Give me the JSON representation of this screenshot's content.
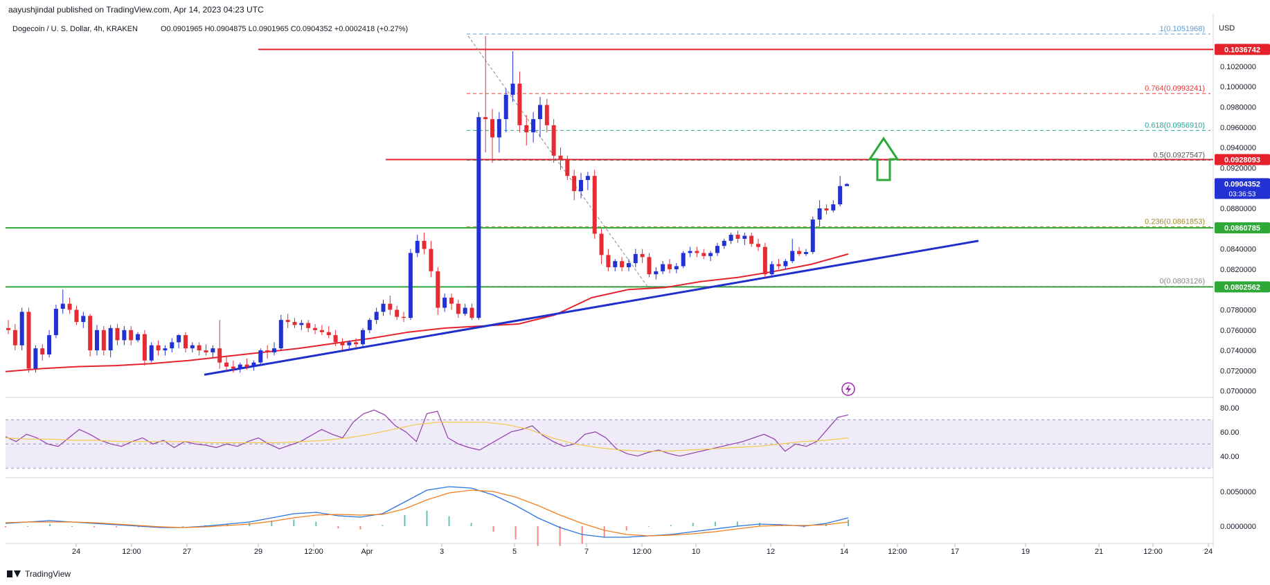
{
  "header": {
    "published": "aayushjindal published on TradingView.com, Apr 14, 2023 04:23 UTC",
    "symbol_line": "Dogecoin / U. S. Dollar, 4h, KRAKEN",
    "ohlc": "O0.0901965 H0.0904875 L0.0901965 C0.0904352 +0.0002418 (+0.27%)"
  },
  "currency_label": "USD",
  "brand": "TradingView",
  "colors": {
    "up": "#2131d4",
    "down": "#e52b34",
    "ma": "#e5222c",
    "trendline": "#1f2fcc",
    "resistance": "#e5222c",
    "support": "#2ea836",
    "fib": "#e53935",
    "rsi": "#8e3fa8",
    "rsi_ma": "#f2c84b",
    "macd": "#2a73e0",
    "signal": "#f27f1b",
    "hist": "#26a69a",
    "hist_neg": "#ef5350",
    "arrow": "#2ea836"
  },
  "chart_data": {
    "type": "candlestick",
    "pair": "DOGE/USD",
    "timeframe": "4h",
    "exchange": "KRAKEN",
    "price_axis": {
      "ticks": [
        "0.1020000",
        "0.1000000",
        "0.0980000",
        "0.0960000",
        "0.0940000",
        "0.0920000",
        "0.0880000",
        "0.0840000",
        "0.0820000",
        "0.0780000",
        "0.0760000",
        "0.0740000",
        "0.0720000",
        "0.0700000"
      ],
      "range": [
        0.0695,
        0.1065
      ]
    },
    "time_axis": {
      "labels": [
        "24",
        "12:00",
        "27",
        "29",
        "12:00",
        "Apr",
        "3",
        "5",
        "7",
        "12:00",
        "10",
        "12",
        "14",
        "12:00",
        "17",
        "19",
        "21",
        "12:00",
        "24"
      ]
    },
    "price_tags": [
      {
        "label": "0.1036742",
        "value": 0.1036742,
        "color": "#e5222c"
      },
      {
        "label": "0.0928093",
        "value": 0.0928093,
        "color": "#e5222c"
      },
      {
        "label": "0.0904352",
        "value": 0.0904352,
        "color": "#2131d4",
        "countdown": "03:36:53"
      },
      {
        "label": "0.0860785",
        "value": 0.0860785,
        "color": "#2ea836"
      },
      {
        "label": "0.0802562",
        "value": 0.0802562,
        "color": "#2ea836"
      }
    ],
    "horizontal_levels": [
      {
        "value": 0.1036742,
        "kind": "resistance"
      },
      {
        "value": 0.0928093,
        "kind": "resistance"
      },
      {
        "value": 0.0860785,
        "kind": "support"
      },
      {
        "value": 0.0802562,
        "kind": "support"
      }
    ],
    "fib_levels": [
      {
        "label": "1(0.1051968)",
        "value": 0.1051968
      },
      {
        "label": "0.764(0.0993241)",
        "value": 0.0993241
      },
      {
        "label": "0.618(0.0956910)",
        "value": 0.095691
      },
      {
        "label": "0.5(0.0927547)",
        "value": 0.0927547
      },
      {
        "label": "0.236(0.0861853)",
        "value": 0.0861853
      },
      {
        "label": "0(0.0803126)",
        "value": 0.0803126
      }
    ],
    "candles": [
      {
        "o": 0.0762,
        "h": 0.077,
        "l": 0.0756,
        "c": 0.076
      },
      {
        "o": 0.076,
        "h": 0.0766,
        "l": 0.074,
        "c": 0.0745
      },
      {
        "o": 0.0745,
        "h": 0.0782,
        "l": 0.074,
        "c": 0.0778
      },
      {
        "o": 0.0778,
        "h": 0.0782,
        "l": 0.0718,
        "c": 0.0722
      },
      {
        "o": 0.0722,
        "h": 0.0745,
        "l": 0.0718,
        "c": 0.0742
      },
      {
        "o": 0.0742,
        "h": 0.0746,
        "l": 0.073,
        "c": 0.0736
      },
      {
        "o": 0.0736,
        "h": 0.076,
        "l": 0.0733,
        "c": 0.0755
      },
      {
        "o": 0.0755,
        "h": 0.0785,
        "l": 0.0752,
        "c": 0.0781
      },
      {
        "o": 0.0781,
        "h": 0.08,
        "l": 0.0776,
        "c": 0.0786
      },
      {
        "o": 0.0786,
        "h": 0.0792,
        "l": 0.0776,
        "c": 0.078
      },
      {
        "o": 0.078,
        "h": 0.0784,
        "l": 0.0765,
        "c": 0.0768
      },
      {
        "o": 0.0768,
        "h": 0.0778,
        "l": 0.0762,
        "c": 0.0774
      },
      {
        "o": 0.0774,
        "h": 0.0776,
        "l": 0.0734,
        "c": 0.074
      },
      {
        "o": 0.074,
        "h": 0.0765,
        "l": 0.0735,
        "c": 0.076
      },
      {
        "o": 0.076,
        "h": 0.0764,
        "l": 0.0735,
        "c": 0.074
      },
      {
        "o": 0.074,
        "h": 0.0765,
        "l": 0.0733,
        "c": 0.0762
      },
      {
        "o": 0.0762,
        "h": 0.0766,
        "l": 0.0745,
        "c": 0.075
      },
      {
        "o": 0.075,
        "h": 0.0764,
        "l": 0.0745,
        "c": 0.076
      },
      {
        "o": 0.076,
        "h": 0.0764,
        "l": 0.0745,
        "c": 0.075
      },
      {
        "o": 0.075,
        "h": 0.0758,
        "l": 0.0748,
        "c": 0.0756
      },
      {
        "o": 0.0756,
        "h": 0.076,
        "l": 0.0725,
        "c": 0.073
      },
      {
        "o": 0.073,
        "h": 0.0748,
        "l": 0.0728,
        "c": 0.0745
      },
      {
        "o": 0.0745,
        "h": 0.075,
        "l": 0.0735,
        "c": 0.074
      },
      {
        "o": 0.074,
        "h": 0.0745,
        "l": 0.0735,
        "c": 0.0742
      },
      {
        "o": 0.0742,
        "h": 0.0752,
        "l": 0.0738,
        "c": 0.0748
      },
      {
        "o": 0.0748,
        "h": 0.0756,
        "l": 0.0742,
        "c": 0.0755
      },
      {
        "o": 0.0755,
        "h": 0.0758,
        "l": 0.0738,
        "c": 0.0742
      },
      {
        "o": 0.0742,
        "h": 0.0748,
        "l": 0.0738,
        "c": 0.0745
      },
      {
        "o": 0.0745,
        "h": 0.0748,
        "l": 0.0735,
        "c": 0.074
      },
      {
        "o": 0.074,
        "h": 0.0746,
        "l": 0.0735,
        "c": 0.0738
      },
      {
        "o": 0.0738,
        "h": 0.0745,
        "l": 0.0733,
        "c": 0.0742
      },
      {
        "o": 0.0742,
        "h": 0.077,
        "l": 0.0722,
        "c": 0.0728
      },
      {
        "o": 0.0728,
        "h": 0.0735,
        "l": 0.072,
        "c": 0.0724
      },
      {
        "o": 0.0724,
        "h": 0.073,
        "l": 0.0718,
        "c": 0.0722
      },
      {
        "o": 0.0722,
        "h": 0.0728,
        "l": 0.0718,
        "c": 0.0726
      },
      {
        "o": 0.0726,
        "h": 0.0732,
        "l": 0.0721,
        "c": 0.0724
      },
      {
        "o": 0.0724,
        "h": 0.073,
        "l": 0.072,
        "c": 0.0728
      },
      {
        "o": 0.0728,
        "h": 0.0742,
        "l": 0.0726,
        "c": 0.074
      },
      {
        "o": 0.074,
        "h": 0.0745,
        "l": 0.0732,
        "c": 0.0738
      },
      {
        "o": 0.0738,
        "h": 0.0748,
        "l": 0.0735,
        "c": 0.0742
      },
      {
        "o": 0.0742,
        "h": 0.0775,
        "l": 0.074,
        "c": 0.077
      },
      {
        "o": 0.077,
        "h": 0.0776,
        "l": 0.0762,
        "c": 0.0768
      },
      {
        "o": 0.0768,
        "h": 0.0772,
        "l": 0.0762,
        "c": 0.0765
      },
      {
        "o": 0.0765,
        "h": 0.077,
        "l": 0.076,
        "c": 0.0767
      },
      {
        "o": 0.0767,
        "h": 0.077,
        "l": 0.0758,
        "c": 0.0762
      },
      {
        "o": 0.0762,
        "h": 0.0766,
        "l": 0.0756,
        "c": 0.076
      },
      {
        "o": 0.076,
        "h": 0.0765,
        "l": 0.0755,
        "c": 0.0758
      },
      {
        "o": 0.0758,
        "h": 0.0764,
        "l": 0.0752,
        "c": 0.0755
      },
      {
        "o": 0.0755,
        "h": 0.076,
        "l": 0.0744,
        "c": 0.0748
      },
      {
        "o": 0.0748,
        "h": 0.0752,
        "l": 0.074,
        "c": 0.0745
      },
      {
        "o": 0.0745,
        "h": 0.075,
        "l": 0.074,
        "c": 0.0748
      },
      {
        "o": 0.0748,
        "h": 0.0752,
        "l": 0.0743,
        "c": 0.0746
      },
      {
        "o": 0.0746,
        "h": 0.0762,
        "l": 0.0744,
        "c": 0.076
      },
      {
        "o": 0.076,
        "h": 0.0772,
        "l": 0.0757,
        "c": 0.077
      },
      {
        "o": 0.077,
        "h": 0.0782,
        "l": 0.0766,
        "c": 0.0778
      },
      {
        "o": 0.0778,
        "h": 0.079,
        "l": 0.0774,
        "c": 0.0786
      },
      {
        "o": 0.0786,
        "h": 0.0794,
        "l": 0.0775,
        "c": 0.078
      },
      {
        "o": 0.078,
        "h": 0.0784,
        "l": 0.077,
        "c": 0.0773
      },
      {
        "o": 0.0773,
        "h": 0.0778,
        "l": 0.0768,
        "c": 0.0772
      },
      {
        "o": 0.0772,
        "h": 0.084,
        "l": 0.077,
        "c": 0.0836
      },
      {
        "o": 0.0836,
        "h": 0.0854,
        "l": 0.0832,
        "c": 0.0848
      },
      {
        "o": 0.0848,
        "h": 0.0856,
        "l": 0.0835,
        "c": 0.084
      },
      {
        "o": 0.084,
        "h": 0.0848,
        "l": 0.0812,
        "c": 0.0818
      },
      {
        "o": 0.0818,
        "h": 0.0822,
        "l": 0.0775,
        "c": 0.0782
      },
      {
        "o": 0.0782,
        "h": 0.0796,
        "l": 0.0778,
        "c": 0.0792
      },
      {
        "o": 0.0792,
        "h": 0.0796,
        "l": 0.078,
        "c": 0.0786
      },
      {
        "o": 0.0786,
        "h": 0.079,
        "l": 0.0772,
        "c": 0.0776
      },
      {
        "o": 0.0776,
        "h": 0.0786,
        "l": 0.0774,
        "c": 0.0782
      },
      {
        "o": 0.0782,
        "h": 0.0786,
        "l": 0.077,
        "c": 0.0772
      },
      {
        "o": 0.0772,
        "h": 0.0975,
        "l": 0.077,
        "c": 0.097
      },
      {
        "o": 0.097,
        "h": 0.105,
        "l": 0.0935,
        "c": 0.0968
      },
      {
        "o": 0.0968,
        "h": 0.0978,
        "l": 0.0925,
        "c": 0.095
      },
      {
        "o": 0.095,
        "h": 0.0975,
        "l": 0.0935,
        "c": 0.0968
      },
      {
        "o": 0.0968,
        "h": 0.0998,
        "l": 0.0955,
        "c": 0.0992
      },
      {
        "o": 0.0992,
        "h": 0.1035,
        "l": 0.0985,
        "c": 0.1003
      },
      {
        "o": 0.1003,
        "h": 0.1015,
        "l": 0.0955,
        "c": 0.0962
      },
      {
        "o": 0.0962,
        "h": 0.0972,
        "l": 0.0942,
        "c": 0.0955
      },
      {
        "o": 0.0955,
        "h": 0.0975,
        "l": 0.0945,
        "c": 0.0968
      },
      {
        "o": 0.0968,
        "h": 0.099,
        "l": 0.095,
        "c": 0.0982
      },
      {
        "o": 0.0982,
        "h": 0.0988,
        "l": 0.0955,
        "c": 0.0962
      },
      {
        "o": 0.0962,
        "h": 0.0968,
        "l": 0.0925,
        "c": 0.0932
      },
      {
        "o": 0.0932,
        "h": 0.094,
        "l": 0.0918,
        "c": 0.0928
      },
      {
        "o": 0.0928,
        "h": 0.0932,
        "l": 0.0908,
        "c": 0.0912
      },
      {
        "o": 0.0912,
        "h": 0.0918,
        "l": 0.0888,
        "c": 0.0897
      },
      {
        "o": 0.0897,
        "h": 0.0915,
        "l": 0.089,
        "c": 0.0908
      },
      {
        "o": 0.0908,
        "h": 0.0916,
        "l": 0.0898,
        "c": 0.0912
      },
      {
        "o": 0.0912,
        "h": 0.0918,
        "l": 0.085,
        "c": 0.0855
      },
      {
        "o": 0.0855,
        "h": 0.086,
        "l": 0.0825,
        "c": 0.0834
      },
      {
        "o": 0.0834,
        "h": 0.084,
        "l": 0.0818,
        "c": 0.0822
      },
      {
        "o": 0.0822,
        "h": 0.083,
        "l": 0.0818,
        "c": 0.0828
      },
      {
        "o": 0.0828,
        "h": 0.0832,
        "l": 0.0818,
        "c": 0.0822
      },
      {
        "o": 0.0822,
        "h": 0.083,
        "l": 0.0818,
        "c": 0.0826
      },
      {
        "o": 0.0826,
        "h": 0.084,
        "l": 0.0822,
        "c": 0.0835
      },
      {
        "o": 0.0835,
        "h": 0.084,
        "l": 0.0826,
        "c": 0.0832
      },
      {
        "o": 0.0832,
        "h": 0.0836,
        "l": 0.0812,
        "c": 0.0815
      },
      {
        "o": 0.0815,
        "h": 0.0822,
        "l": 0.081,
        "c": 0.0818
      },
      {
        "o": 0.0818,
        "h": 0.0828,
        "l": 0.0815,
        "c": 0.0825
      },
      {
        "o": 0.0825,
        "h": 0.083,
        "l": 0.0816,
        "c": 0.082
      },
      {
        "o": 0.082,
        "h": 0.0826,
        "l": 0.0816,
        "c": 0.0823
      },
      {
        "o": 0.0823,
        "h": 0.0838,
        "l": 0.0821,
        "c": 0.0836
      },
      {
        "o": 0.0836,
        "h": 0.0842,
        "l": 0.0832,
        "c": 0.0838
      },
      {
        "o": 0.0838,
        "h": 0.0842,
        "l": 0.0832,
        "c": 0.0836
      },
      {
        "o": 0.0836,
        "h": 0.084,
        "l": 0.083,
        "c": 0.0833
      },
      {
        "o": 0.0833,
        "h": 0.0838,
        "l": 0.0828,
        "c": 0.0836
      },
      {
        "o": 0.0836,
        "h": 0.0846,
        "l": 0.0833,
        "c": 0.0843
      },
      {
        "o": 0.0843,
        "h": 0.085,
        "l": 0.084,
        "c": 0.0848
      },
      {
        "o": 0.0848,
        "h": 0.0856,
        "l": 0.0845,
        "c": 0.0854
      },
      {
        "o": 0.0854,
        "h": 0.0858,
        "l": 0.0846,
        "c": 0.085
      },
      {
        "o": 0.085,
        "h": 0.0856,
        "l": 0.0844,
        "c": 0.0853
      },
      {
        "o": 0.0853,
        "h": 0.0856,
        "l": 0.0842,
        "c": 0.0845
      },
      {
        "o": 0.0845,
        "h": 0.085,
        "l": 0.0838,
        "c": 0.0842
      },
      {
        "o": 0.0842,
        "h": 0.0846,
        "l": 0.0812,
        "c": 0.0815
      },
      {
        "o": 0.0815,
        "h": 0.0828,
        "l": 0.0812,
        "c": 0.0825
      },
      {
        "o": 0.0825,
        "h": 0.083,
        "l": 0.082,
        "c": 0.0823
      },
      {
        "o": 0.0823,
        "h": 0.083,
        "l": 0.082,
        "c": 0.0828
      },
      {
        "o": 0.0828,
        "h": 0.085,
        "l": 0.0826,
        "c": 0.0838
      },
      {
        "o": 0.0838,
        "h": 0.0842,
        "l": 0.0833,
        "c": 0.0835
      },
      {
        "o": 0.0835,
        "h": 0.084,
        "l": 0.0833,
        "c": 0.0837
      },
      {
        "o": 0.0837,
        "h": 0.0872,
        "l": 0.0835,
        "c": 0.0869
      },
      {
        "o": 0.0869,
        "h": 0.0888,
        "l": 0.0862,
        "c": 0.088
      },
      {
        "o": 0.088,
        "h": 0.0884,
        "l": 0.0874,
        "c": 0.0878
      },
      {
        "o": 0.0878,
        "h": 0.0888,
        "l": 0.0876,
        "c": 0.0884
      },
      {
        "o": 0.0884,
        "h": 0.0912,
        "l": 0.0882,
        "c": 0.0902
      },
      {
        "o": 0.0902,
        "h": 0.0905,
        "l": 0.0902,
        "c": 0.0904
      }
    ],
    "moving_average": [
      0.0719,
      0.0722,
      0.0724,
      0.0725,
      0.0727,
      0.073,
      0.0734,
      0.0738,
      0.0742,
      0.0747,
      0.0752,
      0.0758,
      0.0762,
      0.0764,
      0.0766,
      0.0775,
      0.0792,
      0.08,
      0.0802,
      0.0808,
      0.0812,
      0.0818,
      0.0825,
      0.0835
    ],
    "trendline": {
      "from": 0.0716,
      "to": 0.0848
    },
    "rsi": {
      "ticks": [
        "80.00",
        "60.00",
        "40.00"
      ],
      "upper": 70,
      "lower": 30,
      "values": [
        56,
        52,
        58,
        55,
        50,
        48,
        55,
        62,
        58,
        53,
        50,
        48,
        52,
        55,
        50,
        53,
        47,
        52,
        50,
        49,
        47,
        50,
        48,
        52,
        55,
        50,
        46,
        49,
        52,
        57,
        62,
        58,
        55,
        68,
        75,
        78,
        74,
        65,
        60,
        52,
        75,
        77,
        55,
        50,
        47,
        45,
        50,
        55,
        60,
        62,
        65,
        57,
        52,
        48,
        50,
        58,
        60,
        55,
        46,
        42,
        40,
        43,
        45,
        42,
        40,
        42,
        44,
        46,
        48,
        50,
        52,
        55,
        58,
        54,
        44,
        50,
        48,
        52,
        62,
        72,
        74
      ],
      "ma_values": [
        55,
        54,
        54,
        53,
        53,
        52,
        52,
        52,
        52,
        51,
        51,
        51,
        51,
        52,
        53,
        55,
        58,
        62,
        66,
        68,
        68,
        68,
        66,
        62,
        55,
        50,
        47,
        45,
        44,
        44,
        45,
        46,
        47,
        48,
        50,
        52,
        53,
        55
      ]
    },
    "macd": {
      "ticks": [
        "0.0050000",
        "0.0000000"
      ],
      "macd_values": [
        0.0004,
        0.0006,
        0.0008,
        0.0006,
        0.0004,
        0.0002,
        0.0,
        -0.0002,
        -0.0002,
        0.0,
        0.0003,
        0.0006,
        0.0012,
        0.0018,
        0.002,
        0.0015,
        0.0013,
        0.0018,
        0.0035,
        0.0052,
        0.0057,
        0.0055,
        0.0045,
        0.003,
        0.0012,
        -0.0002,
        -0.0012,
        -0.0016,
        -0.0016,
        -0.0014,
        -0.0012,
        -0.0008,
        -0.0004,
        0.0,
        0.0003,
        0.0002,
        0.0,
        0.0004,
        0.0012
      ],
      "signal_values": [
        0.0005,
        0.0006,
        0.0006,
        0.0006,
        0.0005,
        0.0003,
        0.0001,
        -0.0001,
        -0.0002,
        -0.0001,
        0.0001,
        0.0003,
        0.0007,
        0.0012,
        0.0016,
        0.0017,
        0.0016,
        0.0017,
        0.0025,
        0.0038,
        0.0048,
        0.0052,
        0.005,
        0.0042,
        0.003,
        0.0016,
        0.0004,
        -0.0006,
        -0.0012,
        -0.0014,
        -0.0013,
        -0.0011,
        -0.0008,
        -0.0004,
        0.0,
        0.0001,
        0.0001,
        0.0002,
        0.0006
      ]
    }
  }
}
